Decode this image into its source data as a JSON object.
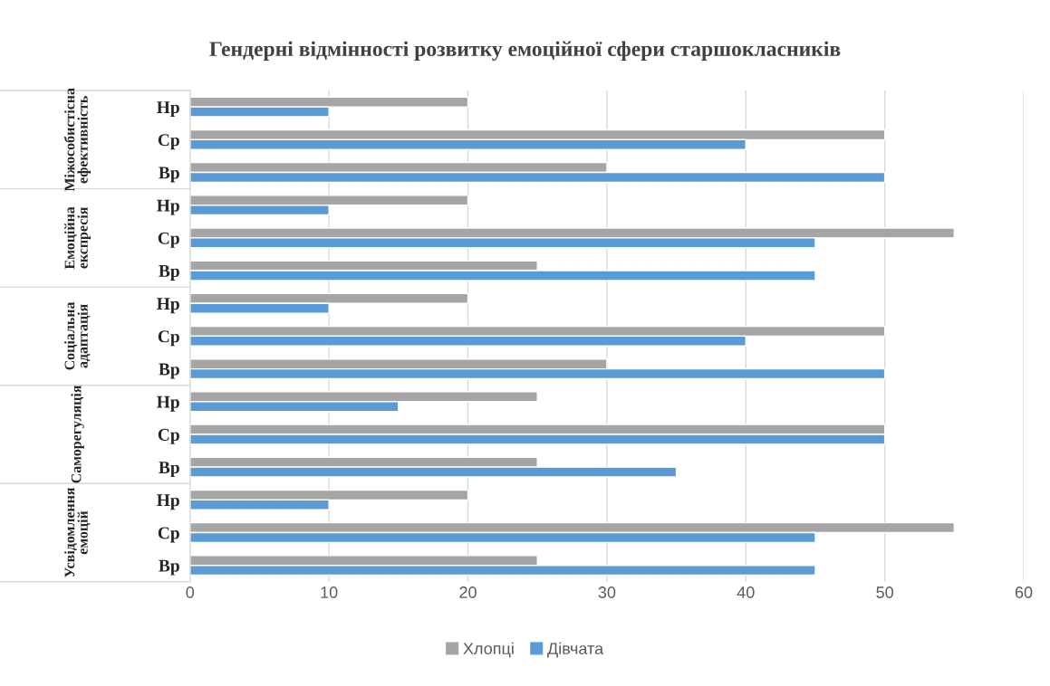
{
  "chart_data": {
    "type": "bar",
    "orientation": "horizontal",
    "title": "Гендерні відмінності розвитку емоційної сфери старшокласників",
    "categories": [
      "Нр",
      "Ср",
      "Вр",
      "Нр",
      "Ср",
      "Вр",
      "Нр",
      "Ср",
      "Вр",
      "Нр",
      "Ср",
      "Вр",
      "Нр",
      "Ср",
      "Вр"
    ],
    "annotations": [
      "Міжособистісна ефективність",
      "Емоційна експресія",
      "Соціальна адаптація",
      "Саморегуляція",
      "Усвідомлення емоцій"
    ],
    "series": [
      {
        "name": "Хлопці",
        "color": "#a5a5a5",
        "values": [
          20,
          50,
          30,
          20,
          55,
          25,
          20,
          50,
          30,
          25,
          50,
          25,
          20,
          55,
          25
        ]
      },
      {
        "name": "Дівчата",
        "color": "#5b9bd5",
        "values": [
          10,
          40,
          50,
          10,
          45,
          45,
          10,
          40,
          50,
          15,
          50,
          35,
          10,
          45,
          45
        ]
      }
    ],
    "xlim": [
      0,
      60
    ],
    "xticks": [
      0,
      10,
      20,
      30,
      40,
      50,
      60
    ],
    "grid": "x",
    "legend": "bottom"
  }
}
